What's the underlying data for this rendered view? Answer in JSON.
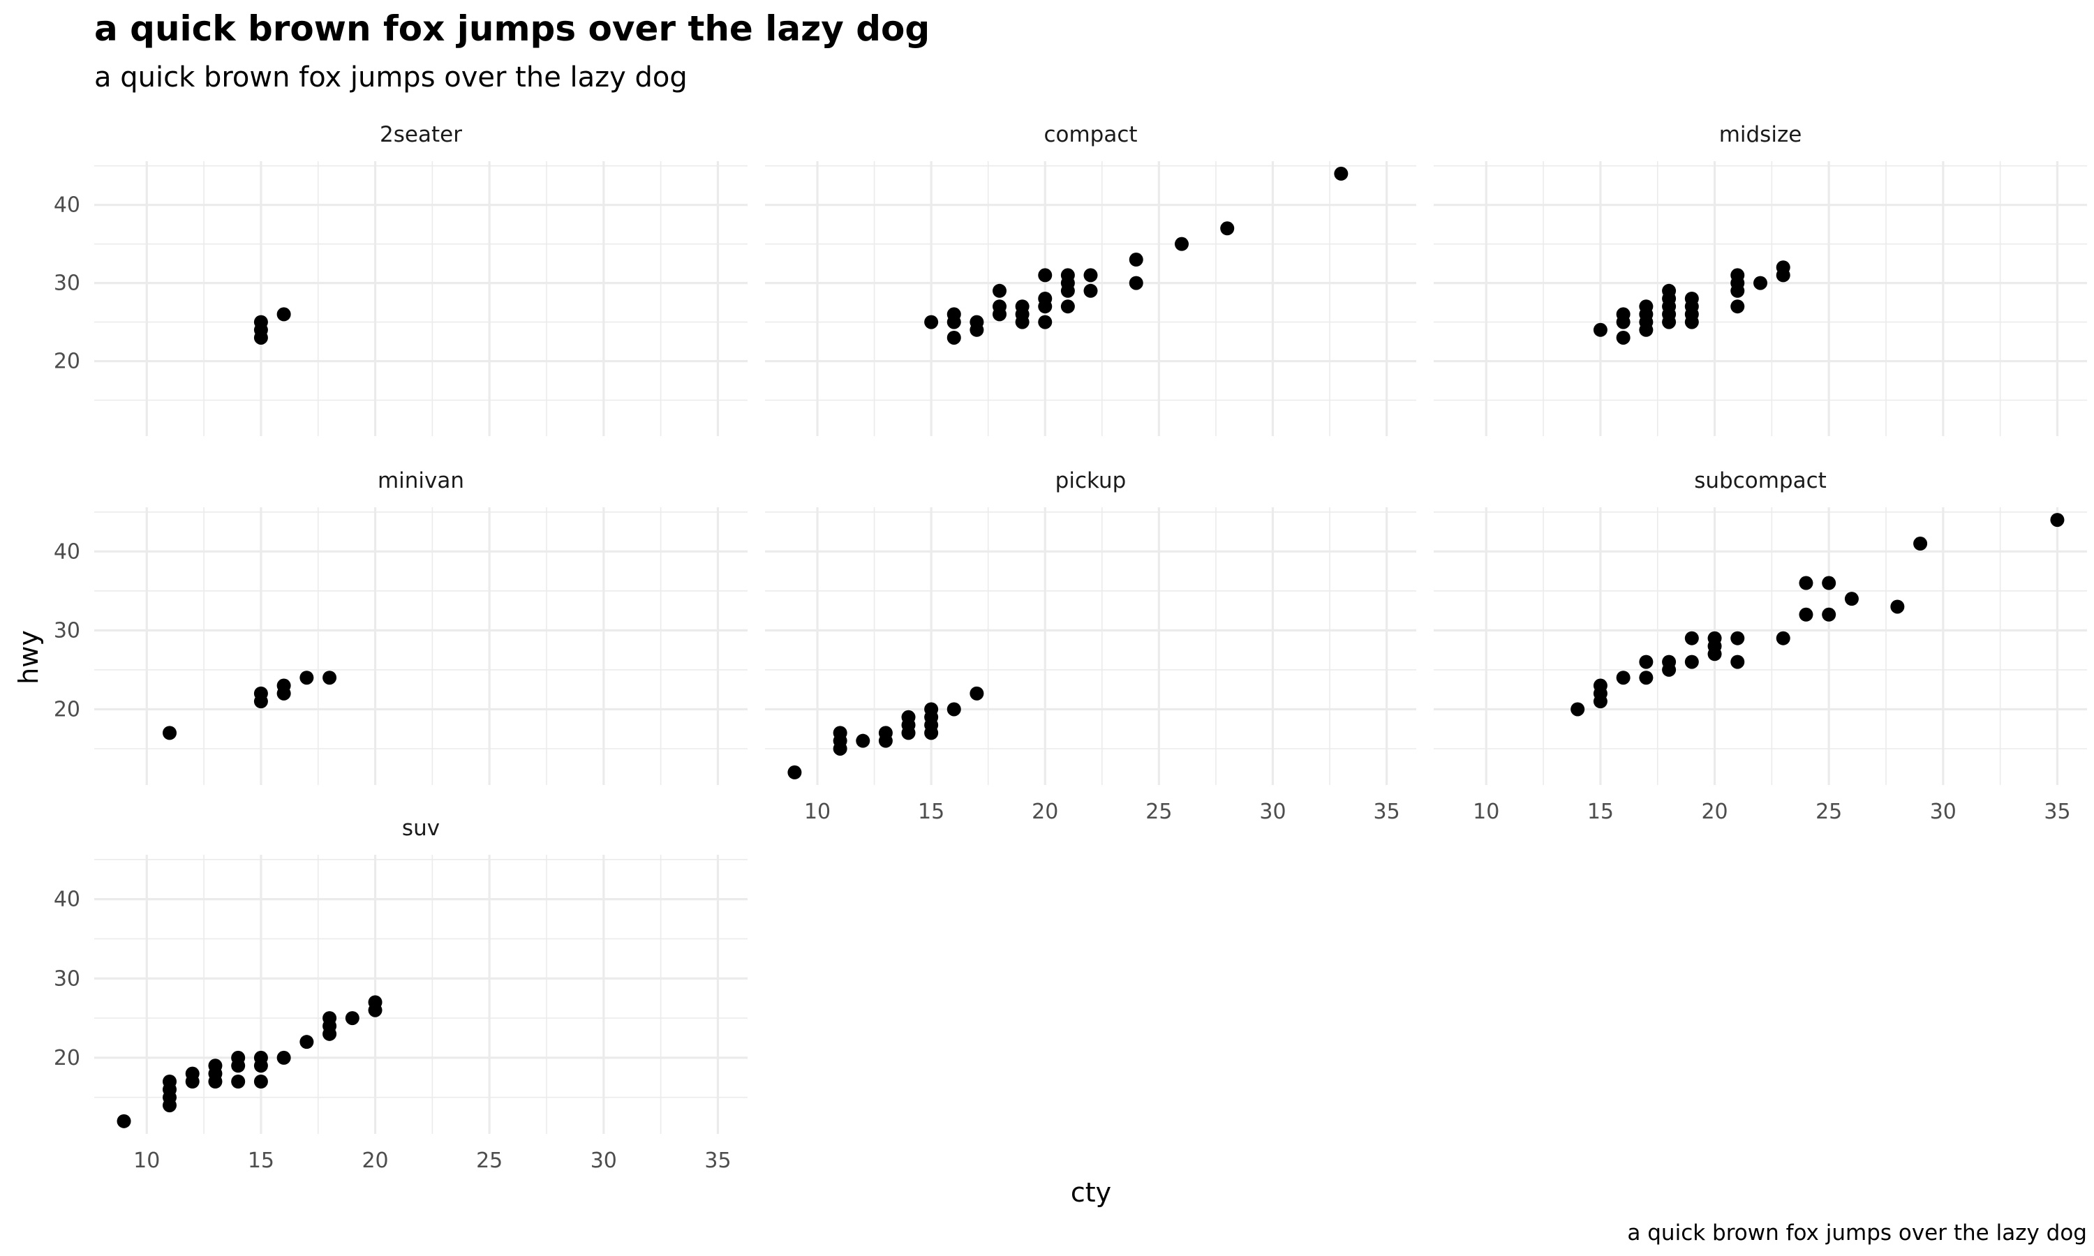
{
  "chart_data": {
    "type": "scatter",
    "title": "a quick brown fox jumps over the lazy dog",
    "subtitle": "a quick brown fox jumps over the lazy dog",
    "caption": "a quick brown fox jumps over the lazy dog",
    "xlabel": "cty",
    "ylabel": "hwy",
    "xlim": [
      7.7,
      36.3
    ],
    "ylim": [
      10.4,
      45.6
    ],
    "x_ticks": [
      10,
      15,
      20,
      25,
      30,
      35
    ],
    "y_ticks": [
      20,
      30,
      40
    ],
    "grid": true,
    "point_color": "#000000",
    "grid_color": "#ebebeb",
    "facets": [
      {
        "name": "2seater",
        "points": [
          [
            15,
            23
          ],
          [
            15,
            24
          ],
          [
            15,
            25
          ],
          [
            16,
            26
          ]
        ]
      },
      {
        "name": "compact",
        "points": [
          [
            15,
            25
          ],
          [
            16,
            23
          ],
          [
            16,
            25
          ],
          [
            16,
            26
          ],
          [
            17,
            24
          ],
          [
            17,
            25
          ],
          [
            18,
            26
          ],
          [
            18,
            27
          ],
          [
            18,
            29
          ],
          [
            19,
            25
          ],
          [
            19,
            26
          ],
          [
            19,
            27
          ],
          [
            20,
            25
          ],
          [
            20,
            27
          ],
          [
            20,
            28
          ],
          [
            20,
            31
          ],
          [
            21,
            27
          ],
          [
            21,
            29
          ],
          [
            21,
            30
          ],
          [
            21,
            31
          ],
          [
            22,
            29
          ],
          [
            22,
            31
          ],
          [
            24,
            30
          ],
          [
            24,
            33
          ],
          [
            26,
            35
          ],
          [
            28,
            37
          ],
          [
            33,
            44
          ]
        ]
      },
      {
        "name": "midsize",
        "points": [
          [
            15,
            24
          ],
          [
            16,
            23
          ],
          [
            16,
            25
          ],
          [
            16,
            26
          ],
          [
            17,
            24
          ],
          [
            17,
            25
          ],
          [
            17,
            26
          ],
          [
            17,
            27
          ],
          [
            18,
            25
          ],
          [
            18,
            26
          ],
          [
            18,
            27
          ],
          [
            18,
            28
          ],
          [
            18,
            29
          ],
          [
            19,
            25
          ],
          [
            19,
            26
          ],
          [
            19,
            27
          ],
          [
            19,
            28
          ],
          [
            21,
            27
          ],
          [
            21,
            29
          ],
          [
            21,
            30
          ],
          [
            21,
            31
          ],
          [
            22,
            30
          ],
          [
            23,
            31
          ],
          [
            23,
            32
          ]
        ]
      },
      {
        "name": "minivan",
        "points": [
          [
            11,
            17
          ],
          [
            15,
            21
          ],
          [
            15,
            22
          ],
          [
            16,
            22
          ],
          [
            16,
            23
          ],
          [
            17,
            24
          ],
          [
            18,
            24
          ]
        ]
      },
      {
        "name": "pickup",
        "points": [
          [
            9,
            12
          ],
          [
            11,
            15
          ],
          [
            11,
            16
          ],
          [
            11,
            17
          ],
          [
            12,
            16
          ],
          [
            13,
            16
          ],
          [
            13,
            17
          ],
          [
            14,
            17
          ],
          [
            14,
            18
          ],
          [
            14,
            19
          ],
          [
            15,
            17
          ],
          [
            15,
            18
          ],
          [
            15,
            19
          ],
          [
            15,
            20
          ],
          [
            16,
            20
          ],
          [
            17,
            22
          ]
        ]
      },
      {
        "name": "subcompact",
        "points": [
          [
            14,
            20
          ],
          [
            15,
            21
          ],
          [
            15,
            22
          ],
          [
            15,
            23
          ],
          [
            16,
            24
          ],
          [
            17,
            24
          ],
          [
            17,
            26
          ],
          [
            18,
            25
          ],
          [
            18,
            26
          ],
          [
            19,
            26
          ],
          [
            19,
            29
          ],
          [
            20,
            27
          ],
          [
            20,
            28
          ],
          [
            20,
            29
          ],
          [
            21,
            26
          ],
          [
            21,
            29
          ],
          [
            23,
            29
          ],
          [
            24,
            32
          ],
          [
            24,
            36
          ],
          [
            25,
            32
          ],
          [
            25,
            36
          ],
          [
            26,
            34
          ],
          [
            28,
            33
          ],
          [
            29,
            41
          ],
          [
            35,
            44
          ]
        ]
      },
      {
        "name": "suv",
        "points": [
          [
            9,
            12
          ],
          [
            11,
            14
          ],
          [
            11,
            15
          ],
          [
            11,
            16
          ],
          [
            11,
            17
          ],
          [
            12,
            17
          ],
          [
            12,
            18
          ],
          [
            13,
            17
          ],
          [
            13,
            18
          ],
          [
            13,
            19
          ],
          [
            14,
            17
          ],
          [
            14,
            19
          ],
          [
            14,
            20
          ],
          [
            15,
            17
          ],
          [
            15,
            19
          ],
          [
            15,
            20
          ],
          [
            16,
            20
          ],
          [
            17,
            22
          ],
          [
            18,
            23
          ],
          [
            18,
            24
          ],
          [
            18,
            25
          ],
          [
            19,
            25
          ],
          [
            20,
            26
          ],
          [
            20,
            27
          ]
        ]
      }
    ]
  }
}
